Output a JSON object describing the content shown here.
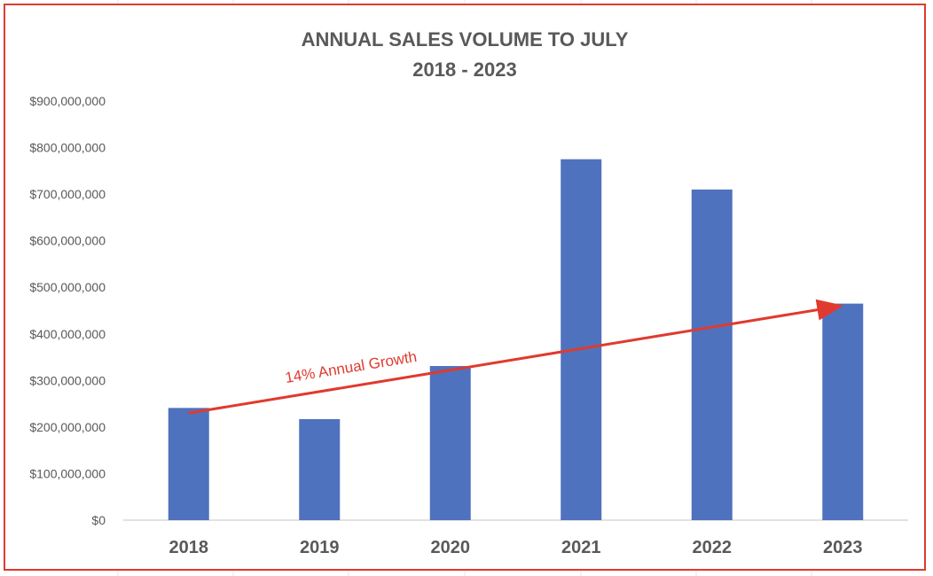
{
  "colors": {
    "bar": "#4f72be",
    "arrow": "#e03a2f",
    "frame": "#e03a2f",
    "gridline": "#d9d9d9",
    "text": "#595959"
  },
  "chart_data": {
    "type": "bar",
    "title": "ANNUAL SALES VOLUME TO JULY",
    "subtitle": "2018 - 2023",
    "xlabel": "",
    "ylabel": "",
    "categories": [
      "2018",
      "2019",
      "2020",
      "2021",
      "2022",
      "2023"
    ],
    "values": [
      241000000,
      217000000,
      331000000,
      775000000,
      710000000,
      465000000
    ],
    "ylim": [
      0,
      900000000
    ],
    "ytick_step": 100000000,
    "ytick_labels": [
      "$0",
      "$100,000,000",
      "$200,000,000",
      "$300,000,000",
      "$400,000,000",
      "$500,000,000",
      "$600,000,000",
      "$700,000,000",
      "$800,000,000",
      "$900,000,000"
    ],
    "grid": false,
    "legend": "none",
    "annotations": [
      {
        "text": "14% Annual Growth",
        "type": "arrow",
        "from": {
          "x": "2018",
          "y": 230000000
        },
        "to": {
          "x": "2023",
          "y": 460000000
        }
      }
    ]
  }
}
